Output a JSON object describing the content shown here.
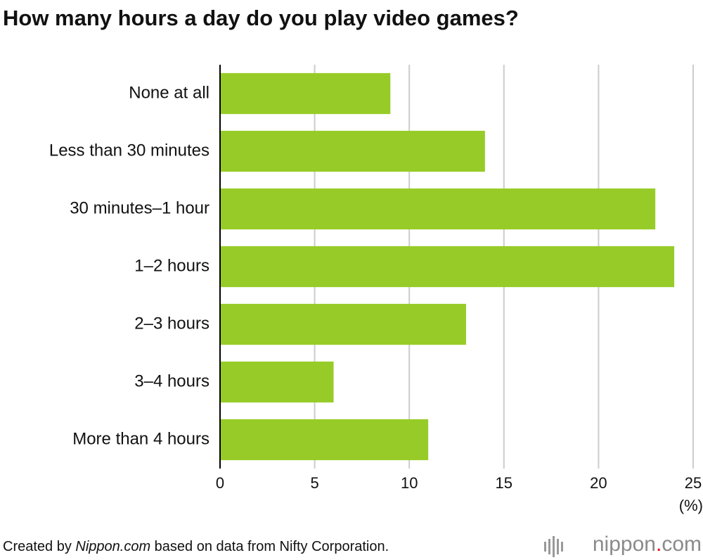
{
  "chart_data": {
    "type": "bar",
    "orientation": "horizontal",
    "title": "How many hours a day do you play video games?",
    "categories": [
      "None at all",
      "Less than 30 minutes",
      "30 minutes–1 hour",
      "1–2 hours",
      "2–3 hours",
      "3–4 hours",
      "More than 4 hours"
    ],
    "values": [
      9,
      14,
      23,
      24,
      13,
      6,
      11
    ],
    "color": "#97cc28",
    "xlim": [
      0,
      25
    ],
    "xticks": [
      0,
      5,
      10,
      15,
      20,
      25
    ],
    "x_unit": "(%)",
    "grid": true,
    "source": [
      "Created by ",
      "Nippon.com",
      " based on data from Nifty Corporation."
    ],
    "logo": [
      "nippon",
      ".",
      "com"
    ]
  }
}
